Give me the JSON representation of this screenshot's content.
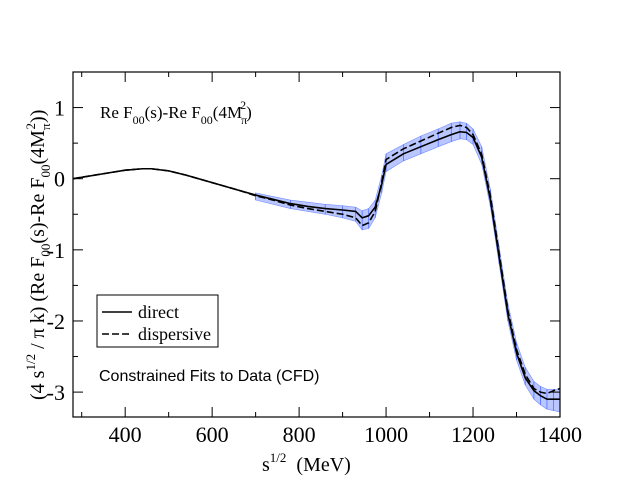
{
  "chart_data": {
    "type": "line",
    "xlim": [
      280,
      1400
    ],
    "ylim": [
      -3.35,
      1.5
    ],
    "xticks": [
      400,
      600,
      800,
      1000,
      1200,
      1400
    ],
    "yticks": [
      -3,
      -2,
      -1,
      0,
      1
    ],
    "xtick_labels": [
      "400",
      "600",
      "800",
      "1000",
      "1200",
      "1400"
    ],
    "ytick_labels": [
      "-3",
      "-2",
      "-1",
      "0",
      "1"
    ],
    "x_unit_label": "(MeV)",
    "grid": false,
    "legend_placement": "lower-left",
    "legend_entries": [
      {
        "label": "direct",
        "style": "solid"
      },
      {
        "label": "dispersive",
        "style": "dashed"
      }
    ],
    "annotation": "Constrained Fits to Data (CFD)",
    "uncertainty_band_color": "#3a5bff",
    "series": [
      {
        "name": "direct",
        "style": "solid",
        "x": [
          280,
          320,
          360,
          400,
          440,
          460,
          500,
          540,
          580,
          620,
          660,
          700,
          740,
          780,
          820,
          860,
          900,
          930,
          945,
          960,
          975,
          990,
          1000,
          1040,
          1080,
          1120,
          1150,
          1170,
          1185,
          1200,
          1220,
          1240,
          1260,
          1280,
          1300,
          1320,
          1340,
          1355,
          1370,
          1385,
          1400
        ],
        "y": [
          0.0,
          0.04,
          0.08,
          0.12,
          0.14,
          0.14,
          0.11,
          0.05,
          -0.02,
          -0.09,
          -0.16,
          -0.23,
          -0.29,
          -0.35,
          -0.39,
          -0.42,
          -0.44,
          -0.46,
          -0.55,
          -0.52,
          -0.4,
          -0.08,
          0.2,
          0.35,
          0.45,
          0.55,
          0.62,
          0.66,
          0.65,
          0.58,
          0.3,
          -0.3,
          -1.1,
          -1.9,
          -2.45,
          -2.8,
          -2.98,
          -3.05,
          -3.1,
          -3.1,
          -3.1
        ]
      },
      {
        "name": "dispersive",
        "style": "dashed",
        "x": [
          280,
          320,
          360,
          400,
          440,
          460,
          500,
          540,
          580,
          620,
          660,
          700,
          740,
          780,
          820,
          860,
          900,
          930,
          945,
          960,
          975,
          990,
          1000,
          1040,
          1080,
          1120,
          1150,
          1170,
          1185,
          1200,
          1220,
          1240,
          1260,
          1280,
          1300,
          1320,
          1340,
          1355,
          1370,
          1385,
          1400
        ],
        "y": [
          0.0,
          0.04,
          0.08,
          0.12,
          0.14,
          0.14,
          0.11,
          0.05,
          -0.02,
          -0.09,
          -0.16,
          -0.24,
          -0.3,
          -0.37,
          -0.42,
          -0.46,
          -0.5,
          -0.55,
          -0.66,
          -0.62,
          -0.46,
          -0.05,
          0.27,
          0.42,
          0.53,
          0.64,
          0.72,
          0.75,
          0.72,
          0.62,
          0.34,
          -0.25,
          -1.05,
          -1.85,
          -2.4,
          -2.75,
          -2.95,
          -3.0,
          -3.02,
          -2.98,
          -2.95
        ]
      }
    ],
    "band_x": [
      700,
      780,
      860,
      900,
      930,
      945,
      960,
      975,
      990,
      1000,
      1040,
      1080,
      1120,
      1150,
      1170,
      1185,
      1200,
      1220,
      1240,
      1260,
      1280,
      1300,
      1320,
      1340,
      1355,
      1370,
      1385,
      1400
    ],
    "band_lower": [
      -0.3,
      -0.42,
      -0.5,
      -0.55,
      -0.6,
      -0.72,
      -0.7,
      -0.55,
      -0.2,
      0.1,
      0.25,
      0.35,
      0.45,
      0.52,
      0.56,
      0.55,
      0.48,
      0.2,
      -0.4,
      -1.2,
      -2.0,
      -2.55,
      -2.9,
      -3.1,
      -3.18,
      -3.24,
      -3.26,
      -3.28
    ],
    "band_upper": [
      -0.2,
      -0.3,
      -0.36,
      -0.38,
      -0.4,
      -0.45,
      -0.42,
      -0.3,
      0.05,
      0.35,
      0.48,
      0.6,
      0.7,
      0.78,
      0.8,
      0.78,
      0.7,
      0.45,
      -0.15,
      -0.95,
      -1.75,
      -2.3,
      -2.65,
      -2.85,
      -2.92,
      -2.96,
      -2.96,
      -2.96
    ]
  }
}
